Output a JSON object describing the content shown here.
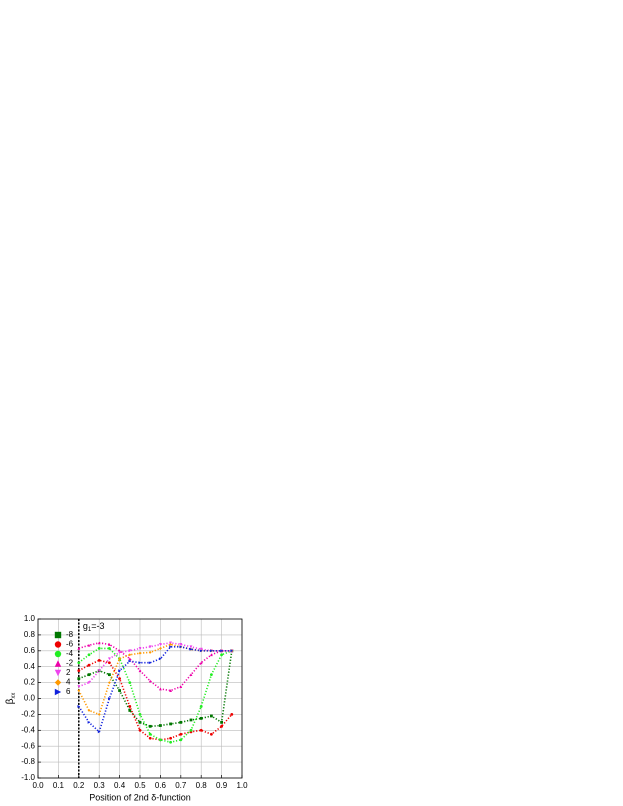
{
  "chart_data": {
    "type": "scatter",
    "xlabel": "Position of 2nd δ-function",
    "ylabel": {
      "main": "β",
      "sub": "xx"
    },
    "annotation": {
      "main": "g",
      "sub": "1",
      "rest": "=-3",
      "x": 0.22,
      "y": 0.9
    },
    "vline": 0.2,
    "grid": true,
    "legend": "upper left",
    "xlim": [
      0,
      1
    ],
    "ylim": [
      -1,
      1
    ],
    "xticks": [
      {
        "value": 0,
        "label": "0.0"
      },
      {
        "value": 0.1,
        "label": "0.1"
      },
      {
        "value": 0.2,
        "label": "0.2"
      },
      {
        "value": 0.3,
        "label": "0.3"
      },
      {
        "value": 0.4,
        "label": "0.4"
      },
      {
        "value": 0.5,
        "label": "0.5"
      },
      {
        "value": 0.6,
        "label": "0.6"
      },
      {
        "value": 0.7,
        "label": "0.7"
      },
      {
        "value": 0.8,
        "label": "0.8"
      },
      {
        "value": 0.9,
        "label": "0.9"
      },
      {
        "value": 1,
        "label": "1.0"
      }
    ],
    "yticks": [
      {
        "value": -1,
        "label": "-1.0"
      },
      {
        "value": -0.8,
        "label": "-0.8"
      },
      {
        "value": -0.6,
        "label": "-0.6"
      },
      {
        "value": -0.4,
        "label": "-0.4"
      },
      {
        "value": -0.2,
        "label": "-0.2"
      },
      {
        "value": 0,
        "label": "0.0"
      },
      {
        "value": 0.2,
        "label": "0.2"
      },
      {
        "value": 0.4,
        "label": "0.4"
      },
      {
        "value": 0.6,
        "label": "0.6"
      },
      {
        "value": 0.8,
        "label": "0.8"
      },
      {
        "value": 1,
        "label": "1.0"
      }
    ],
    "x": [
      0.2,
      0.25,
      0.3,
      0.35,
      0.4,
      0.45,
      0.5,
      0.55,
      0.6,
      0.65,
      0.7,
      0.75,
      0.8,
      0.85,
      0.9,
      0.95
    ],
    "series": [
      {
        "name": "-8",
        "color": "#007700",
        "marker": "square",
        "values": [
          0.25,
          0.3,
          0.35,
          0.3,
          0.1,
          -0.15,
          -0.3,
          -0.35,
          -0.34,
          -0.32,
          -0.3,
          -0.27,
          -0.25,
          -0.22,
          -0.3,
          0.6
        ]
      },
      {
        "name": "-6",
        "color": "#ee0000",
        "marker": "circle",
        "values": [
          0.35,
          0.42,
          0.48,
          0.45,
          0.25,
          -0.1,
          -0.4,
          -0.5,
          -0.52,
          -0.5,
          -0.45,
          -0.42,
          -0.4,
          -0.45,
          -0.35,
          -0.2
        ]
      },
      {
        "name": "-4",
        "color": "#22ee22",
        "marker": "circle",
        "values": [
          0.45,
          0.55,
          0.63,
          0.63,
          0.5,
          0.2,
          -0.2,
          -0.45,
          -0.52,
          -0.55,
          -0.52,
          -0.4,
          -0.1,
          0.3,
          0.55,
          0.6
        ]
      },
      {
        "name": "-2",
        "color": "#ee00aa",
        "marker": "up",
        "values": [
          0.63,
          0.67,
          0.7,
          0.68,
          0.6,
          0.5,
          0.35,
          0.22,
          0.12,
          0.1,
          0.15,
          0.3,
          0.45,
          0.55,
          0.6,
          0.6
        ]
      },
      {
        "name": "2",
        "color": "#ee44ee",
        "marker": "down",
        "values": [
          0.15,
          0.2,
          0.35,
          0.5,
          0.58,
          0.6,
          0.63,
          0.65,
          0.68,
          0.7,
          0.68,
          0.65,
          0.62,
          0.6,
          0.6,
          0.6
        ]
      },
      {
        "name": "4",
        "color": "#ff9900",
        "marker": "diamond",
        "values": [
          0.1,
          -0.15,
          -0.2,
          0.2,
          0.5,
          0.55,
          0.57,
          0.58,
          0.63,
          0.68,
          0.65,
          0.62,
          0.6,
          0.6,
          0.6,
          0.6
        ]
      },
      {
        "name": "6",
        "color": "#1122dd",
        "marker": "right",
        "values": [
          -0.1,
          -0.3,
          -0.42,
          0.0,
          0.35,
          0.47,
          0.45,
          0.45,
          0.5,
          0.65,
          0.65,
          0.62,
          0.6,
          0.6,
          0.6,
          0.6
        ]
      }
    ]
  }
}
